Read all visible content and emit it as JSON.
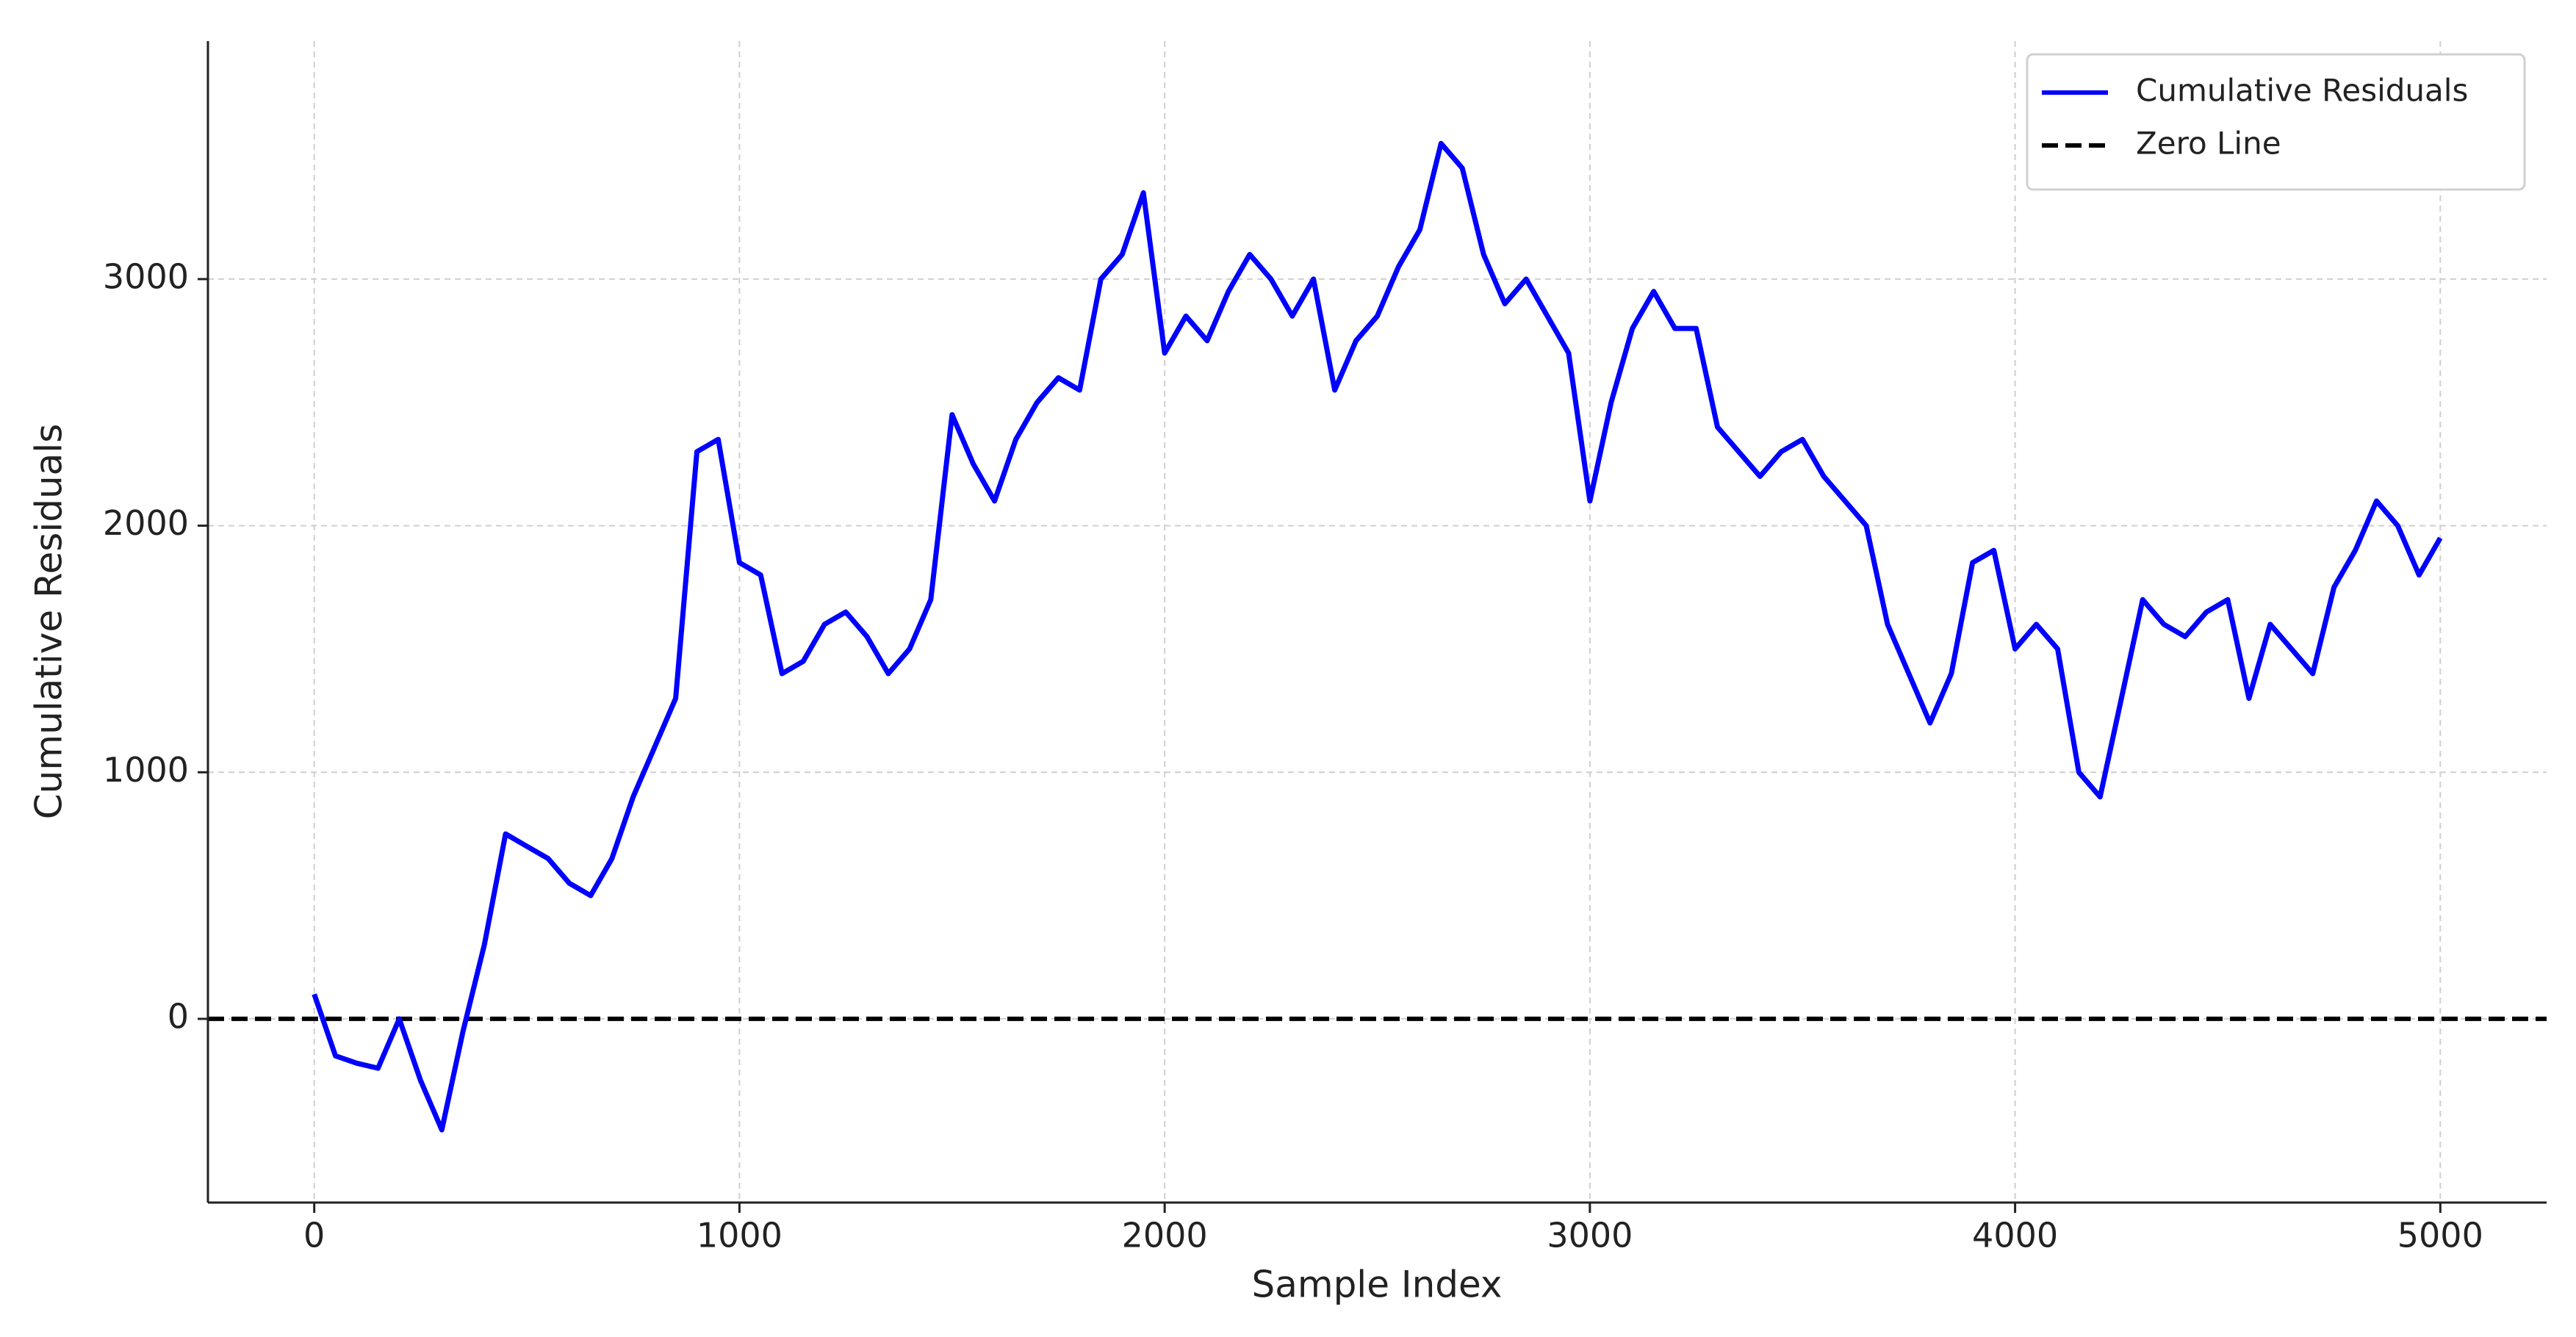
{
  "chart_data": {
    "type": "line",
    "xlabel": "Sample Index",
    "ylabel": "Cumulative Residuals",
    "x": [
      0,
      50,
      100,
      150,
      200,
      250,
      300,
      350,
      400,
      450,
      500,
      550,
      600,
      650,
      700,
      750,
      800,
      850,
      900,
      950,
      1000,
      1050,
      1100,
      1150,
      1200,
      1250,
      1300,
      1350,
      1400,
      1450,
      1500,
      1550,
      1600,
      1650,
      1700,
      1750,
      1800,
      1850,
      1900,
      1950,
      2000,
      2050,
      2100,
      2150,
      2200,
      2250,
      2300,
      2350,
      2400,
      2450,
      2500,
      2550,
      2600,
      2650,
      2700,
      2750,
      2800,
      2850,
      2900,
      2950,
      3000,
      3050,
      3100,
      3150,
      3200,
      3250,
      3300,
      3350,
      3400,
      3450,
      3500,
      3550,
      3600,
      3650,
      3700,
      3750,
      3800,
      3850,
      3900,
      3950,
      4000,
      4050,
      4100,
      4150,
      4200,
      4250,
      4300,
      4350,
      4400,
      4450,
      4500,
      4550,
      4600,
      4650,
      4700,
      4750,
      4800,
      4850,
      4900,
      4950,
      5000
    ],
    "series": [
      {
        "name": "Cumulative Residuals",
        "color": "#0000ff",
        "values": [
          100,
          -150,
          -180,
          -200,
          0,
          -250,
          -450,
          -50,
          300,
          750,
          700,
          650,
          550,
          500,
          650,
          900,
          1100,
          1300,
          2300,
          2350,
          1850,
          1800,
          1400,
          1450,
          1600,
          1650,
          1550,
          1400,
          1500,
          1700,
          2450,
          2250,
          2100,
          2350,
          2500,
          2600,
          2550,
          3000,
          3100,
          3350,
          2700,
          2850,
          2750,
          2950,
          3100,
          3000,
          2850,
          3000,
          2550,
          2750,
          2850,
          3050,
          3200,
          3550,
          3450,
          3100,
          2900,
          3000,
          2850,
          2700,
          2100,
          2500,
          2800,
          2950,
          2800,
          2800,
          2400,
          2300,
          2200,
          2300,
          2350,
          2200,
          2100,
          2000,
          1600,
          1400,
          1200,
          1400,
          1850,
          1900,
          1500,
          1600,
          1500,
          1000,
          900,
          1300,
          1700,
          1600,
          1550,
          1650,
          1700,
          1300,
          1600,
          1500,
          1400,
          1750,
          1900,
          2100,
          2000,
          1800,
          1950
        ]
      }
    ],
    "hlines": [
      {
        "name": "Zero Line",
        "value": 0,
        "color": "#000000",
        "dash": "dashed"
      }
    ],
    "xlim": [
      -250,
      5250
    ],
    "ylim": [
      -745,
      3965
    ],
    "xticks": [
      0,
      1000,
      2000,
      3000,
      4000,
      5000
    ],
    "yticks": [
      0,
      1000,
      2000,
      3000
    ],
    "grid": true,
    "legend": "upper right"
  }
}
